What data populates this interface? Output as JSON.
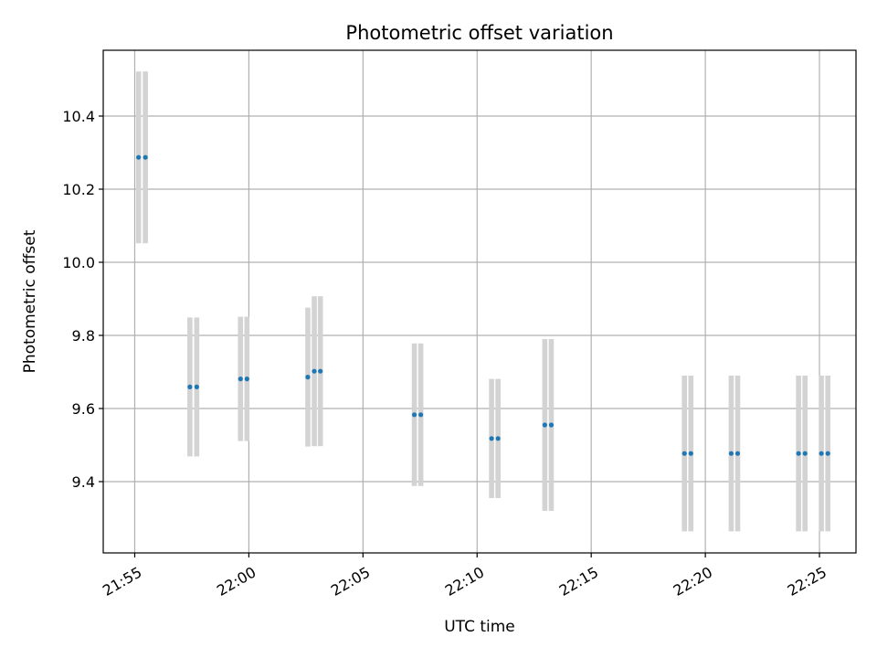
{
  "chart_data": {
    "type": "scatter",
    "title": "Photometric offset variation",
    "xlabel": "UTC time",
    "ylabel": "Photometric offset",
    "grid": true,
    "x_tick_labels": [
      "21:55",
      "22:00",
      "22:05",
      "22:10",
      "22:15",
      "22:20",
      "22:25"
    ],
    "x_tick_minutes": [
      0,
      5,
      10,
      15,
      20,
      25,
      30
    ],
    "xlim_minutes": [
      -1.38,
      31.6
    ],
    "y_tick_labels": [
      "9.4",
      "9.6",
      "9.8",
      "10.0",
      "10.2",
      "10.4"
    ],
    "y_ticks": [
      9.4,
      9.6,
      9.8,
      10.0,
      10.2,
      10.4
    ],
    "ylim": [
      9.205,
      10.58
    ],
    "colors": {
      "point": "#1f77b4",
      "errorbar": "#d3d3d3"
    },
    "series": [
      {
        "points": [
          {
            "t": "21:55:10",
            "y": 10.287,
            "err": 0.235
          },
          {
            "t": "21:55:28",
            "y": 10.287,
            "err": 0.235
          },
          {
            "t": "21:57:25",
            "y": 9.659,
            "err": 0.19
          },
          {
            "t": "21:57:43",
            "y": 9.659,
            "err": 0.19
          },
          {
            "t": "21:59:38",
            "y": 9.681,
            "err": 0.17
          },
          {
            "t": "21:59:55",
            "y": 9.681,
            "err": 0.17
          },
          {
            "t": "22:02:35",
            "y": 9.686,
            "err": 0.19
          },
          {
            "t": "22:02:52",
            "y": 9.702,
            "err": 0.205
          },
          {
            "t": "22:03:08",
            "y": 9.702,
            "err": 0.205
          },
          {
            "t": "22:07:15",
            "y": 9.583,
            "err": 0.195
          },
          {
            "t": "22:07:32",
            "y": 9.583,
            "err": 0.195
          },
          {
            "t": "22:10:38",
            "y": 9.518,
            "err": 0.163
          },
          {
            "t": "22:10:55",
            "y": 9.518,
            "err": 0.163
          },
          {
            "t": "22:12:58",
            "y": 9.555,
            "err": 0.235
          },
          {
            "t": "22:13:15",
            "y": 9.555,
            "err": 0.235
          },
          {
            "t": "22:19:05",
            "y": 9.477,
            "err": 0.213
          },
          {
            "t": "22:19:22",
            "y": 9.477,
            "err": 0.213
          },
          {
            "t": "22:21:08",
            "y": 9.477,
            "err": 0.213
          },
          {
            "t": "22:21:25",
            "y": 9.477,
            "err": 0.213
          },
          {
            "t": "22:24:05",
            "y": 9.477,
            "err": 0.213
          },
          {
            "t": "22:24:22",
            "y": 9.477,
            "err": 0.213
          },
          {
            "t": "22:25:05",
            "y": 9.477,
            "err": 0.213
          },
          {
            "t": "22:25:22",
            "y": 9.477,
            "err": 0.213
          }
        ]
      }
    ]
  }
}
